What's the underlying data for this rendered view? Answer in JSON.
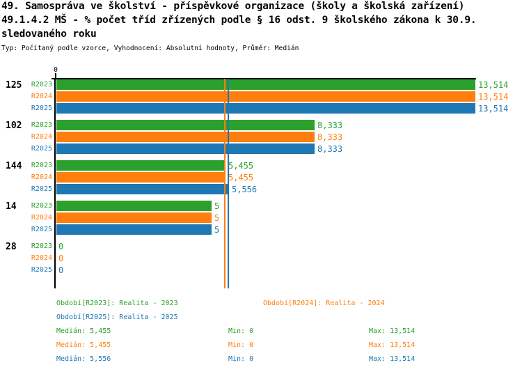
{
  "header": {
    "title_line1": "49. Samospráva ve školství - příspěvkové organizace (školy a školská zařízení)",
    "title_line2": "49.1.4.2 MŠ - % počet tříd zřízených podle § 16 odst. 9 školského zákona k 30.9.",
    "title_line3": "sledovaného roku",
    "meta_line": "Typ: Počítaný podle vzorce, Vyhodnocení: Absolutní hodnoty, Průměr: Medián"
  },
  "colors": {
    "green": "#2ca02c",
    "orange": "#ff7f0e",
    "blue": "#1f77b4",
    "axis": "#000000",
    "text": "#000000"
  },
  "chart_data": {
    "type": "bar",
    "orientation": "horizontal",
    "title": "49.1.4.2 MŠ - % počet tříd zřízených podle § 16 odst. 9 školského zákona k 30.9. sledovaného roku",
    "x_axis": {
      "origin_tick_label": "0",
      "min": 0,
      "max": 13.514,
      "gridlines": false
    },
    "categories": [
      "125",
      "102",
      "144",
      "14",
      "28"
    ],
    "series": [
      {
        "name": "R2023",
        "color": "#2ca02c",
        "values": [
          13.514,
          8.333,
          5.455,
          5,
          0
        ],
        "value_labels": [
          "13,514",
          "8,333",
          "5,455",
          "5",
          "0"
        ],
        "median": 5.455
      },
      {
        "name": "R2024",
        "color": "#ff7f0e",
        "values": [
          13.514,
          8.333,
          5.455,
          5,
          0
        ],
        "value_labels": [
          "13,514",
          "8,333",
          "5,455",
          "5",
          "0"
        ],
        "median": 5.455
      },
      {
        "name": "R2025",
        "color": "#1f77b4",
        "values": [
          13.514,
          8.333,
          5.556,
          5,
          0
        ],
        "value_labels": [
          "13,514",
          "8,333",
          "5,556",
          "5",
          "0"
        ],
        "median": 5.556
      }
    ],
    "median_lines": [
      {
        "series": "R2023",
        "value": 5.455,
        "color": "#2ca02c"
      },
      {
        "series": "R2024",
        "value": 5.455,
        "color": "#ff7f0e"
      },
      {
        "series": "R2025",
        "value": 5.556,
        "color": "#1f77b4"
      }
    ]
  },
  "legend": {
    "periods": [
      {
        "name": "R2023",
        "label": "Období[R2023]: Realita - 2023",
        "color": "#2ca02c"
      },
      {
        "name": "R2024",
        "label": "Období[R2024]: Realita - 2024",
        "color": "#ff7f0e"
      },
      {
        "name": "R2025",
        "label": "Období[R2025]: Realita - 2025",
        "color": "#1f77b4"
      }
    ],
    "stats": [
      {
        "name": "R2023",
        "median": "Medián: 5,455",
        "min": "Min: 0",
        "max": "Max: 13,514",
        "color": "#2ca02c"
      },
      {
        "name": "R2024",
        "median": "Medián: 5,455",
        "min": "Min: 0",
        "max": "Max: 13,514",
        "color": "#ff7f0e"
      },
      {
        "name": "R2025",
        "median": "Medián: 5,556",
        "min": "Min: 0",
        "max": "Max: 13,514",
        "color": "#1f77b4"
      }
    ]
  }
}
